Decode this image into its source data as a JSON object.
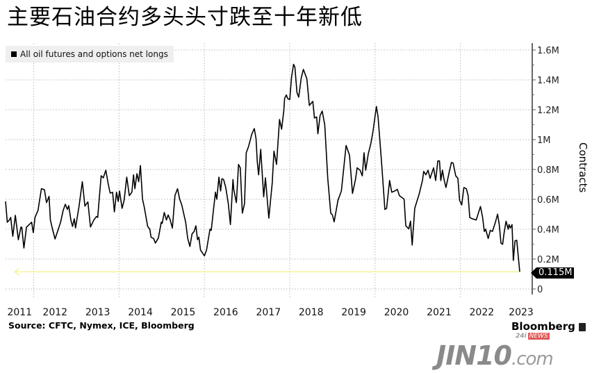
{
  "title": "主要石油合约多头头寸跌至十年新低",
  "source": "Source: CFTC, Nymex, ICE, Bloomberg",
  "brand": "Bloomberg",
  "watermark": {
    "main": "JIN10",
    "suffix": ".com",
    "badge_prefix": "24i",
    "badge": "NEWS"
  },
  "colors": {
    "line": "#000000",
    "last_value_line": "#f2f08a",
    "grid": "#c8c8c8",
    "legend_bg": "#efefef"
  },
  "chart_data": {
    "type": "line",
    "title": "",
    "xlabel": "",
    "ylabel": "Contracts",
    "xlim": [
      2011.34,
      2023.39
    ],
    "ylim": [
      0,
      1.6
    ],
    "grid": true,
    "legend_placement": "top-left",
    "y_axis_side": "right",
    "x_tick_labels": [
      "2011",
      "2012",
      "2013",
      "2014",
      "2015",
      "2016",
      "2017",
      "2018",
      "2019",
      "2020",
      "2021",
      "2022",
      "2023"
    ],
    "y_ticks": [
      0,
      0.2,
      0.4,
      0.6,
      0.8,
      1.0,
      1.2,
      1.4,
      1.6
    ],
    "y_tick_labels": [
      "0",
      "0.2M",
      "0.4M",
      "0.6M",
      "0.8M",
      "1M",
      "1.2M",
      "1.4M",
      "1.6M"
    ],
    "last_value": 0.115,
    "last_value_label": "0.115M",
    "series": [
      {
        "name": "All oil futures and options net longs",
        "unit": "million contracts",
        "points": [
          [
            2011.34,
            0.586
          ],
          [
            2011.38,
            0.447
          ],
          [
            2011.43,
            0.462
          ],
          [
            2011.46,
            0.479
          ],
          [
            2011.51,
            0.353
          ],
          [
            2011.57,
            0.493
          ],
          [
            2011.64,
            0.33
          ],
          [
            2011.7,
            0.414
          ],
          [
            2011.72,
            0.414
          ],
          [
            2011.77,
            0.274
          ],
          [
            2011.83,
            0.414
          ],
          [
            2011.9,
            0.433
          ],
          [
            2011.95,
            0.447
          ],
          [
            2011.99,
            0.377
          ],
          [
            2012.03,
            0.479
          ],
          [
            2012.1,
            0.526
          ],
          [
            2012.18,
            0.671
          ],
          [
            2012.25,
            0.665
          ],
          [
            2012.3,
            0.578
          ],
          [
            2012.36,
            0.62
          ],
          [
            2012.39,
            0.462
          ],
          [
            2012.44,
            0.4
          ],
          [
            2012.5,
            0.335
          ],
          [
            2012.56,
            0.386
          ],
          [
            2012.63,
            0.447
          ],
          [
            2012.69,
            0.526
          ],
          [
            2012.74,
            0.567
          ],
          [
            2012.79,
            0.532
          ],
          [
            2012.82,
            0.558
          ],
          [
            2012.87,
            0.462
          ],
          [
            2012.91,
            0.419
          ],
          [
            2012.95,
            0.47
          ],
          [
            2012.98,
            0.409
          ],
          [
            2013.06,
            0.549
          ],
          [
            2013.14,
            0.718
          ],
          [
            2013.2,
            0.555
          ],
          [
            2013.27,
            0.583
          ],
          [
            2013.33,
            0.415
          ],
          [
            2013.41,
            0.462
          ],
          [
            2013.47,
            0.485
          ],
          [
            2013.5,
            0.479
          ],
          [
            2013.54,
            0.619
          ],
          [
            2013.58,
            0.758
          ],
          [
            2013.63,
            0.744
          ],
          [
            2013.69,
            0.795
          ],
          [
            2013.74,
            0.712
          ],
          [
            2013.79,
            0.642
          ],
          [
            2013.85,
            0.647
          ],
          [
            2013.89,
            0.516
          ],
          [
            2013.94,
            0.648
          ],
          [
            2013.98,
            0.586
          ],
          [
            2014.01,
            0.656
          ],
          [
            2014.07,
            0.54
          ],
          [
            2014.12,
            0.595
          ],
          [
            2014.18,
            0.749
          ],
          [
            2014.24,
            0.625
          ],
          [
            2014.3,
            0.648
          ],
          [
            2014.34,
            0.764
          ],
          [
            2014.37,
            0.671
          ],
          [
            2014.42,
            0.772
          ],
          [
            2014.46,
            0.718
          ],
          [
            2014.5,
            0.826
          ],
          [
            2014.55,
            0.601
          ],
          [
            2014.59,
            0.549
          ],
          [
            2014.67,
            0.419
          ],
          [
            2014.72,
            0.4
          ],
          [
            2014.75,
            0.346
          ],
          [
            2014.81,
            0.338
          ],
          [
            2014.85,
            0.307
          ],
          [
            2014.92,
            0.341
          ],
          [
            2014.99,
            0.447
          ],
          [
            2015.01,
            0.439
          ],
          [
            2015.06,
            0.512
          ],
          [
            2015.11,
            0.462
          ],
          [
            2015.15,
            0.496
          ],
          [
            2015.2,
            0.462
          ],
          [
            2015.25,
            0.408
          ],
          [
            2015.31,
            0.625
          ],
          [
            2015.37,
            0.671
          ],
          [
            2015.42,
            0.601
          ],
          [
            2015.47,
            0.563
          ],
          [
            2015.56,
            0.447
          ],
          [
            2015.61,
            0.338
          ],
          [
            2015.66,
            0.284
          ],
          [
            2015.71,
            0.369
          ],
          [
            2015.76,
            0.385
          ],
          [
            2015.8,
            0.423
          ],
          [
            2015.84,
            0.33
          ],
          [
            2015.87,
            0.346
          ],
          [
            2015.91,
            0.26
          ],
          [
            2016.0,
            0.222
          ],
          [
            2016.05,
            0.26
          ],
          [
            2016.13,
            0.4
          ],
          [
            2016.16,
            0.392
          ],
          [
            2016.21,
            0.524
          ],
          [
            2016.26,
            0.648
          ],
          [
            2016.29,
            0.601
          ],
          [
            2016.34,
            0.749
          ],
          [
            2016.38,
            0.656
          ],
          [
            2016.41,
            0.738
          ],
          [
            2016.45,
            0.733
          ],
          [
            2016.5,
            0.679
          ],
          [
            2016.56,
            0.571
          ],
          [
            2016.61,
            0.431
          ],
          [
            2016.67,
            0.733
          ],
          [
            2016.69,
            0.664
          ],
          [
            2016.75,
            0.578
          ],
          [
            2016.8,
            0.834
          ],
          [
            2016.84,
            0.811
          ],
          [
            2016.89,
            0.508
          ],
          [
            2016.94,
            0.571
          ],
          [
            2016.98,
            0.912
          ],
          [
            2017.03,
            0.95
          ],
          [
            2017.07,
            0.992
          ],
          [
            2017.11,
            1.036
          ],
          [
            2017.17,
            1.074
          ],
          [
            2017.21,
            1.005
          ],
          [
            2017.24,
            0.85
          ],
          [
            2017.27,
            0.764
          ],
          [
            2017.32,
            0.935
          ],
          [
            2017.39,
            0.617
          ],
          [
            2017.43,
            0.744
          ],
          [
            2017.51,
            0.474
          ],
          [
            2017.59,
            0.71
          ],
          [
            2017.63,
            0.923
          ],
          [
            2017.69,
            0.834
          ],
          [
            2017.76,
            1.135
          ],
          [
            2017.81,
            1.07
          ],
          [
            2017.86,
            1.191
          ],
          [
            2017.88,
            1.276
          ],
          [
            2017.92,
            1.299
          ],
          [
            2017.95,
            1.276
          ],
          [
            2018.0,
            1.268
          ],
          [
            2018.04,
            1.415
          ],
          [
            2018.09,
            1.504
          ],
          [
            2018.12,
            1.485
          ],
          [
            2018.17,
            1.315
          ],
          [
            2018.21,
            1.284
          ],
          [
            2018.27,
            1.415
          ],
          [
            2018.32,
            1.47
          ],
          [
            2018.4,
            1.408
          ],
          [
            2018.46,
            1.229
          ],
          [
            2018.54,
            1.256
          ],
          [
            2018.58,
            1.144
          ],
          [
            2018.63,
            1.152
          ],
          [
            2018.66,
            1.039
          ],
          [
            2018.71,
            1.16
          ],
          [
            2018.76,
            1.191
          ],
          [
            2018.82,
            1.098
          ],
          [
            2018.89,
            0.741
          ],
          [
            2018.96,
            0.508
          ],
          [
            2019.0,
            0.496
          ],
          [
            2019.04,
            0.45
          ],
          [
            2019.13,
            0.594
          ],
          [
            2019.21,
            0.656
          ],
          [
            2019.32,
            0.961
          ],
          [
            2019.4,
            0.896
          ],
          [
            2019.47,
            0.64
          ],
          [
            2019.54,
            0.733
          ],
          [
            2019.58,
            0.811
          ],
          [
            2019.65,
            0.795
          ],
          [
            2019.7,
            0.757
          ],
          [
            2019.74,
            0.912
          ],
          [
            2019.78,
            0.795
          ],
          [
            2019.84,
            0.904
          ],
          [
            2019.9,
            0.973
          ],
          [
            2019.95,
            1.051
          ],
          [
            2020.03,
            1.222
          ],
          [
            2020.07,
            1.152
          ],
          [
            2020.16,
            0.819
          ],
          [
            2020.23,
            0.532
          ],
          [
            2020.27,
            0.54
          ],
          [
            2020.34,
            0.726
          ],
          [
            2020.39,
            0.648
          ],
          [
            2020.46,
            0.656
          ],
          [
            2020.52,
            0.667
          ],
          [
            2020.57,
            0.625
          ],
          [
            2020.68,
            0.601
          ],
          [
            2020.72,
            0.423
          ],
          [
            2020.79,
            0.403
          ],
          [
            2020.83,
            0.454
          ],
          [
            2020.87,
            0.294
          ],
          [
            2020.93,
            0.54
          ],
          [
            2021.03,
            0.633
          ],
          [
            2021.11,
            0.726
          ],
          [
            2021.14,
            0.787
          ],
          [
            2021.19,
            0.764
          ],
          [
            2021.24,
            0.795
          ],
          [
            2021.29,
            0.741
          ],
          [
            2021.37,
            0.811
          ],
          [
            2021.42,
            0.726
          ],
          [
            2021.47,
            0.857
          ],
          [
            2021.51,
            0.857
          ],
          [
            2021.54,
            0.726
          ],
          [
            2021.58,
            0.795
          ],
          [
            2021.61,
            0.741
          ],
          [
            2021.66,
            0.679
          ],
          [
            2021.74,
            0.787
          ],
          [
            2021.79,
            0.847
          ],
          [
            2021.83,
            0.842
          ],
          [
            2021.89,
            0.757
          ],
          [
            2021.94,
            0.741
          ],
          [
            2021.98,
            0.594
          ],
          [
            2022.03,
            0.563
          ],
          [
            2022.08,
            0.679
          ],
          [
            2022.14,
            0.671
          ],
          [
            2022.18,
            0.625
          ],
          [
            2022.22,
            0.478
          ],
          [
            2022.28,
            0.47
          ],
          [
            2022.37,
            0.462
          ],
          [
            2022.43,
            0.516
          ],
          [
            2022.47,
            0.552
          ],
          [
            2022.52,
            0.478
          ],
          [
            2022.56,
            0.385
          ],
          [
            2022.59,
            0.4
          ],
          [
            2022.65,
            0.338
          ],
          [
            2022.7,
            0.392
          ],
          [
            2022.75,
            0.385
          ],
          [
            2022.82,
            0.447
          ],
          [
            2022.87,
            0.501
          ],
          [
            2022.91,
            0.431
          ],
          [
            2022.95,
            0.307
          ],
          [
            2022.99,
            0.299
          ],
          [
            2023.02,
            0.369
          ],
          [
            2023.07,
            0.454
          ],
          [
            2023.12,
            0.4
          ],
          [
            2023.14,
            0.431
          ],
          [
            2023.17,
            0.408
          ],
          [
            2023.21,
            0.431
          ],
          [
            2023.24,
            0.191
          ],
          [
            2023.28,
            0.322
          ],
          [
            2023.32,
            0.326
          ],
          [
            2023.39,
            0.115
          ]
        ]
      }
    ]
  }
}
